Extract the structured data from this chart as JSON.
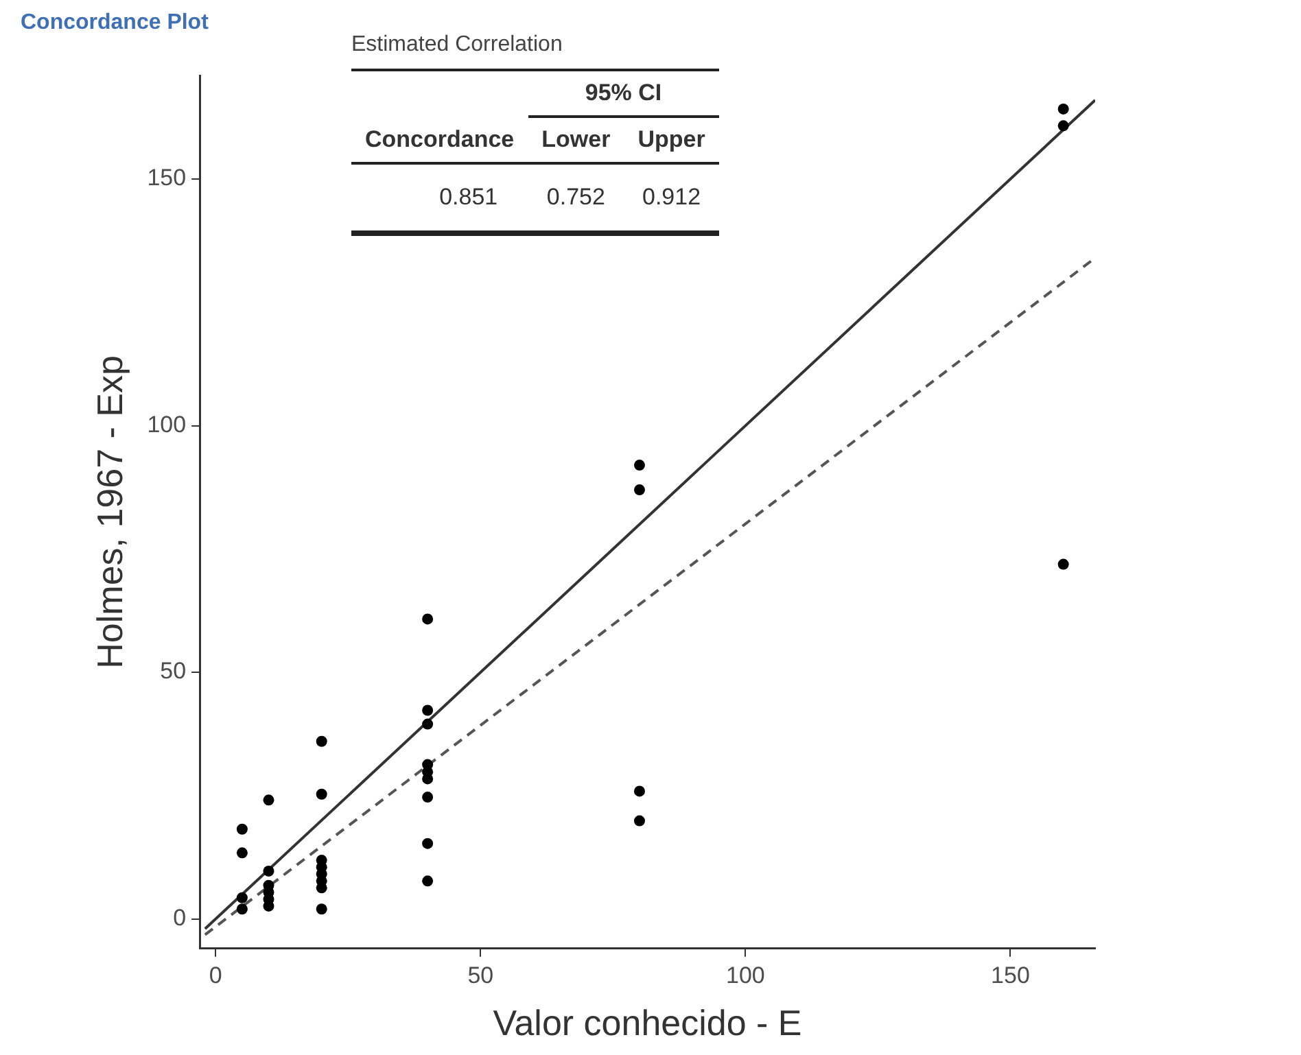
{
  "chart_data": {
    "type": "scatter",
    "title": "Concordance Plot",
    "xlabel": "Valor conhecido - E",
    "ylabel": "Holmes, 1967 - Exp",
    "annotations": [
      "Estimated Correlation",
      "95% CI",
      "Concordance",
      "Lower",
      "Upper",
      "0.851",
      "0.752",
      "0.912"
    ],
    "xlim": [
      -3,
      166
    ],
    "xticks": [
      0,
      50,
      100,
      150
    ],
    "ylim": [
      -6,
      171
    ],
    "yticks": [
      0,
      50,
      100,
      150
    ],
    "grid": false,
    "legend": false,
    "marker": "circle",
    "series": [
      {
        "color": "#000000",
        "x": [
          5,
          5,
          5,
          5,
          10,
          10,
          10,
          10,
          10,
          10,
          20,
          20,
          20,
          20,
          20,
          20,
          20,
          20,
          40,
          40,
          40,
          40,
          40,
          40,
          40,
          40,
          40,
          80,
          80,
          80,
          80,
          160,
          160,
          160
        ],
        "values": [
          18.2,
          13.4,
          4.3,
          2,
          24.1,
          9.7,
          6.8,
          5.4,
          4,
          2.6,
          36,
          25.3,
          11.9,
          10.5,
          9.1,
          7.7,
          6.3,
          2,
          60.8,
          42.3,
          39.5,
          31.3,
          29.8,
          28.4,
          24.7,
          15.3,
          7.7,
          92,
          87,
          25.9,
          19.9,
          71.9,
          164.2,
          160.8
        ]
      },
      {
        "type": "line",
        "color": "#333333",
        "line_style": "solid",
        "marker": "none",
        "x": [
          -2,
          166
        ],
        "values": [
          -2,
          166
        ]
      },
      {
        "type": "line",
        "color": "#555555",
        "line_style": "dashed",
        "marker": "none",
        "x": [
          -2,
          166
        ],
        "values": [
          -3.2,
          134
        ]
      }
    ]
  }
}
